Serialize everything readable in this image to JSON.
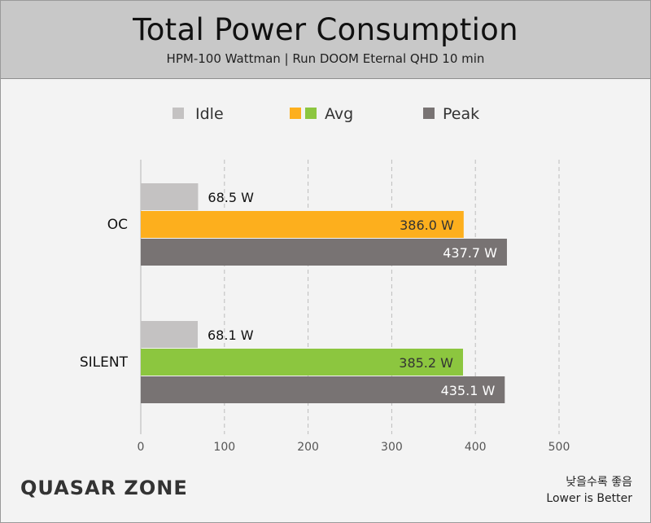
{
  "header": {
    "title": "Total Power Consumption",
    "subtitle": "HPM-100 Wattman  |  Run DOOM Eternal QHD 10 min"
  },
  "chart_data": {
    "type": "bar",
    "orientation": "horizontal",
    "categories": [
      "OC",
      "SILENT"
    ],
    "series": [
      {
        "name": "Idle",
        "values": [
          68.5,
          68.1
        ],
        "labels": [
          "68.5 W",
          "68.1 W"
        ],
        "color": "#c4c2c2"
      },
      {
        "name": "Avg",
        "values": [
          386.0,
          385.2
        ],
        "labels": [
          "386.0 W",
          "385.2 W"
        ],
        "colors": [
          "#fdaf1d",
          "#8cc63f"
        ]
      },
      {
        "name": "Peak",
        "values": [
          437.7,
          435.1
        ],
        "labels": [
          "437.7 W",
          "435.1 W"
        ],
        "color": "#787373"
      }
    ],
    "xlim": [
      0,
      500
    ],
    "xticks": [
      "0",
      "100",
      "200",
      "300",
      "400",
      "500"
    ],
    "grid": true,
    "legend": "top-center"
  },
  "branding": {
    "logo": "QUASAR ZONE"
  },
  "note": {
    "korean": "낮을수록 좋음",
    "english": "Lower is Better"
  }
}
